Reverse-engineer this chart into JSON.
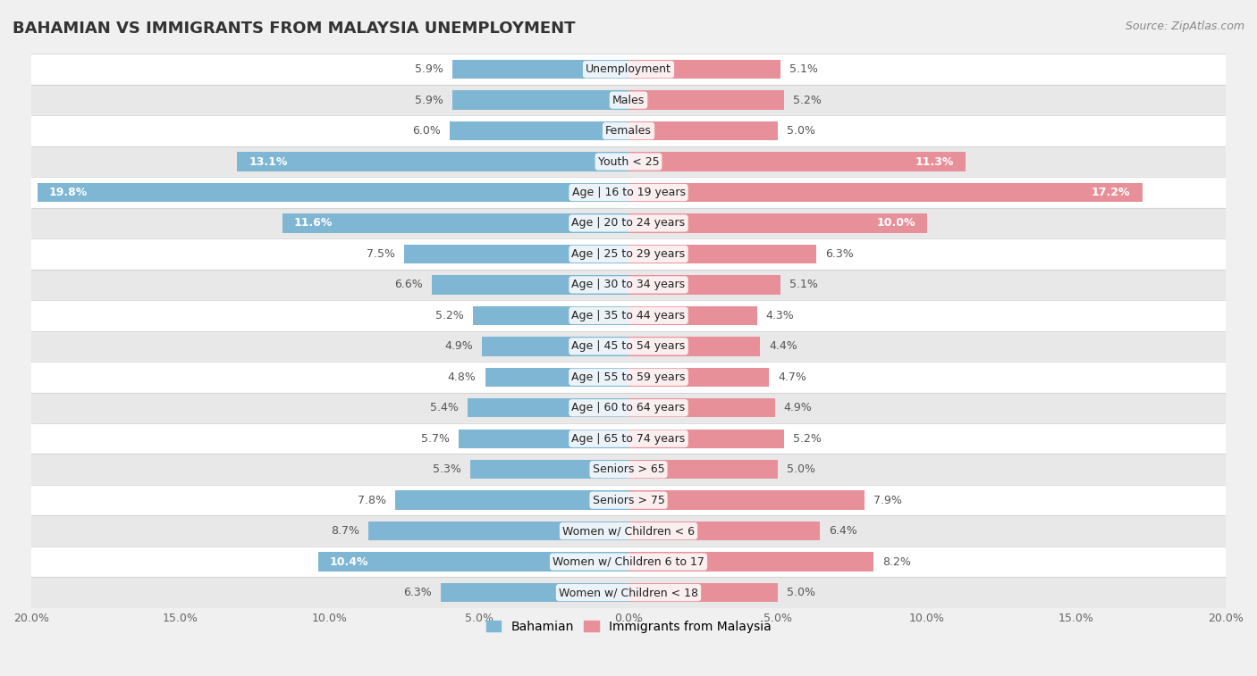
{
  "title": "BAHAMIAN VS IMMIGRANTS FROM MALAYSIA UNEMPLOYMENT",
  "source": "Source: ZipAtlas.com",
  "categories": [
    "Unemployment",
    "Males",
    "Females",
    "Youth < 25",
    "Age | 16 to 19 years",
    "Age | 20 to 24 years",
    "Age | 25 to 29 years",
    "Age | 30 to 34 years",
    "Age | 35 to 44 years",
    "Age | 45 to 54 years",
    "Age | 55 to 59 years",
    "Age | 60 to 64 years",
    "Age | 65 to 74 years",
    "Seniors > 65",
    "Seniors > 75",
    "Women w/ Children < 6",
    "Women w/ Children 6 to 17",
    "Women w/ Children < 18"
  ],
  "bahamian": [
    5.9,
    5.9,
    6.0,
    13.1,
    19.8,
    11.6,
    7.5,
    6.6,
    5.2,
    4.9,
    4.8,
    5.4,
    5.7,
    5.3,
    7.8,
    8.7,
    10.4,
    6.3
  ],
  "malaysia": [
    5.1,
    5.2,
    5.0,
    11.3,
    17.2,
    10.0,
    6.3,
    5.1,
    4.3,
    4.4,
    4.7,
    4.9,
    5.2,
    5.0,
    7.9,
    6.4,
    8.2,
    5.0
  ],
  "bahamian_color": "#7eb6d4",
  "malaysia_color": "#e8909a",
  "bar_height": 0.62,
  "xlim": 20.0,
  "bg_color": "#f0f0f0",
  "row_colors_even": "#ffffff",
  "row_colors_odd": "#e8e8e8",
  "legend_bahamian": "Bahamian",
  "legend_malaysia": "Immigrants from Malaysia",
  "value_label_threshold": 10.0,
  "label_inside_color": "#ffffff",
  "label_outside_color": "#555555",
  "category_label_fontsize": 9.0,
  "value_label_fontsize": 9.0,
  "title_fontsize": 13,
  "source_fontsize": 9
}
